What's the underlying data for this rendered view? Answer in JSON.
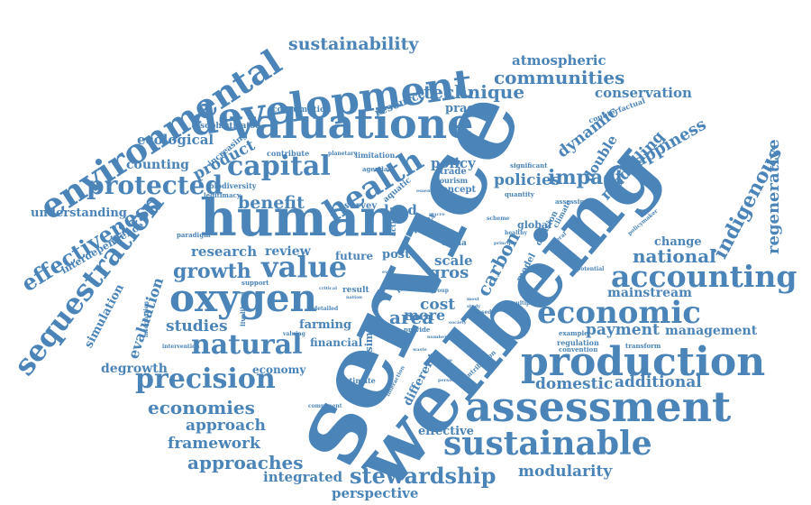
{
  "colors": {
    "word": "#4a84b8",
    "background": "#ffffff"
  },
  "words": [
    "service",
    "wellbeing",
    "human",
    "development",
    "valuatione",
    "environmental",
    "assessment",
    "production",
    "oxygen",
    "sustainable",
    "accounting",
    "economic",
    "sequestration",
    "health",
    "capital",
    "natural",
    "protected",
    "value",
    "precision",
    "effectiveness",
    "communities",
    "technique",
    "stewardship",
    "economies",
    "growth",
    "approaches",
    "framework",
    "approach",
    "sustainability",
    "indigenous",
    "regenerative",
    "happiness",
    "modelling",
    "impact",
    "dynamic",
    "double",
    "national",
    "domestic",
    "additional",
    "management",
    "payment",
    "modularity",
    "mainstream",
    "conservation",
    "atmospheric",
    "integrated",
    "perspective",
    "ecological",
    "product",
    "counting",
    "benefit",
    "research",
    "review",
    "studies",
    "evaluation",
    "simulation",
    "degrowth",
    "economy",
    "understanding",
    "interdependence",
    "carbon",
    "policies",
    "policy",
    "area",
    "cost",
    "more",
    "land",
    "scale",
    "gros",
    "farming",
    "financial",
    "effective",
    "different",
    "result",
    "estimate",
    "dacsim",
    "change",
    "practice",
    "resource",
    "consumption",
    "sophisticated",
    "increasing",
    "contribute",
    "limitation",
    "agenda",
    "biodiversity",
    "legitimacy",
    "paradigm",
    "survey",
    "aquatic",
    "tourism",
    "concept",
    "nature",
    "trade",
    "china",
    "global",
    "model",
    "decision",
    "climate",
    "quantity",
    "assessing",
    "significant",
    "counterfactual",
    "example",
    "regulation",
    "convention",
    "transform",
    "policymaker",
    "several",
    "potential",
    "future",
    "post",
    "support",
    "livelihood",
    "valuing",
    "intervention",
    "information",
    "component",
    "contribution",
    "interaction",
    "detailed",
    "critical",
    "provide",
    "planetary",
    "index",
    "level",
    "action",
    "group",
    "based",
    "multiple",
    "scheme",
    "healthy",
    "social",
    "essential",
    "macro",
    "principle",
    "society",
    "manage",
    "personnel",
    "number",
    "study",
    "most",
    "nation",
    "eval",
    "waste"
  ]
}
